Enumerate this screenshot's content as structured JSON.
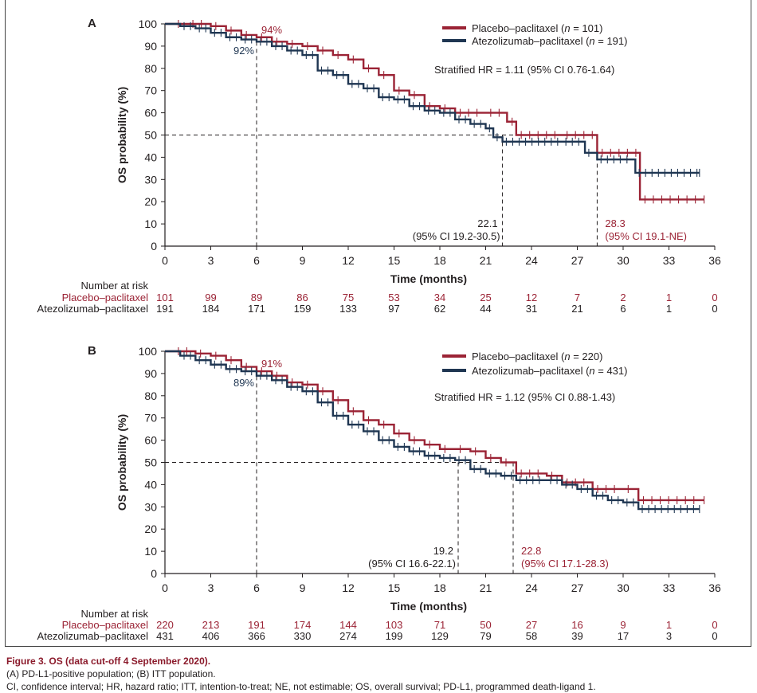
{
  "chart_data": [
    {
      "type": "line",
      "panel_label": "A",
      "title": "",
      "xlabel": "Time (months)",
      "ylabel": "OS probability (%)",
      "xlim": [
        0,
        36
      ],
      "ylim": [
        0,
        100
      ],
      "xticks": [
        "0",
        "3",
        "6",
        "9",
        "12",
        "15",
        "18",
        "21",
        "24",
        "27",
        "30",
        "33",
        "36"
      ],
      "yticks": [
        "0",
        "10",
        "20",
        "30",
        "40",
        "50",
        "60",
        "70",
        "80",
        "90",
        "100"
      ],
      "series": [
        {
          "name": "Placebo–paclitaxel",
          "n_text": "n = 101",
          "color": "#9b2335",
          "steps": [
            [
              0,
              100
            ],
            [
              1.5,
              100
            ],
            [
              3,
              99
            ],
            [
              4,
              97
            ],
            [
              5,
              95
            ],
            [
              6,
              94
            ],
            [
              7,
              92
            ],
            [
              8,
              91
            ],
            [
              9,
              90
            ],
            [
              10,
              88
            ],
            [
              11,
              86
            ],
            [
              12,
              84
            ],
            [
              13,
              80
            ],
            [
              14,
              77
            ],
            [
              15,
              70
            ],
            [
              16,
              68
            ],
            [
              17,
              63
            ],
            [
              18,
              62
            ],
            [
              19,
              60
            ],
            [
              21,
              60
            ],
            [
              22.4,
              56
            ],
            [
              23,
              50
            ],
            [
              26,
              50
            ],
            [
              28.3,
              42
            ],
            [
              31,
              42
            ],
            [
              31.1,
              21
            ],
            [
              35.3,
              21
            ]
          ]
        },
        {
          "name": "Atezolizumab–paclitaxel",
          "n_text": "n = 191",
          "color": "#1f3652",
          "steps": [
            [
              0,
              100
            ],
            [
              1,
              99
            ],
            [
              2,
              98
            ],
            [
              3,
              96
            ],
            [
              4,
              94
            ],
            [
              5,
              93
            ],
            [
              6,
              92
            ],
            [
              7,
              90
            ],
            [
              8,
              88
            ],
            [
              9,
              86
            ],
            [
              10,
              79
            ],
            [
              11,
              77
            ],
            [
              12,
              73
            ],
            [
              13,
              71
            ],
            [
              14,
              67
            ],
            [
              15,
              66
            ],
            [
              16,
              63
            ],
            [
              17,
              61
            ],
            [
              18,
              60
            ],
            [
              19,
              57
            ],
            [
              20,
              55
            ],
            [
              21,
              53
            ],
            [
              21.5,
              49
            ],
            [
              22.1,
              47
            ],
            [
              26,
              47
            ],
            [
              27.5,
              42
            ],
            [
              28.3,
              39
            ],
            [
              30,
              39
            ],
            [
              30.8,
              33
            ],
            [
              35,
              33
            ]
          ]
        }
      ],
      "annotations": {
        "placebo_6m": "94%",
        "atezo_6m": "92%",
        "hr_text": "Stratified HR = 1.11 (95% CI 0.76-1.64)",
        "atezo_median": "22.1",
        "atezo_median_ci": "(95% CI 19.2-30.5)",
        "placebo_median": "28.3",
        "placebo_median_ci": "(95% CI 19.1-NE)",
        "atezo_median_x": 22.1,
        "placebo_median_x": 28.3,
        "landmark_x": 6,
        "median_y": 50
      },
      "risk_table": {
        "header": "Number at risk",
        "rows": [
          {
            "label": "Placebo–paclitaxel",
            "color": "#9b2335",
            "values": [
              "101",
              "99",
              "89",
              "86",
              "75",
              "53",
              "34",
              "25",
              "12",
              "7",
              "2",
              "1",
              "0"
            ]
          },
          {
            "label": "Atezolizumab–paclitaxel",
            "color": "#231f20",
            "values": [
              "191",
              "184",
              "171",
              "159",
              "133",
              "97",
              "62",
              "44",
              "31",
              "21",
              "6",
              "1",
              "0"
            ]
          }
        ]
      }
    },
    {
      "type": "line",
      "panel_label": "B",
      "title": "",
      "xlabel": "Time (months)",
      "ylabel": "OS probability (%)",
      "xlim": [
        0,
        36
      ],
      "ylim": [
        0,
        100
      ],
      "xticks": [
        "0",
        "3",
        "6",
        "9",
        "12",
        "15",
        "18",
        "21",
        "24",
        "27",
        "30",
        "33",
        "36"
      ],
      "yticks": [
        "0",
        "10",
        "20",
        "30",
        "40",
        "50",
        "60",
        "70",
        "80",
        "90",
        "100"
      ],
      "series": [
        {
          "name": "Placebo–paclitaxel",
          "n_text": "n = 220",
          "color": "#9b2335",
          "steps": [
            [
              0,
              100
            ],
            [
              2,
              99
            ],
            [
              3,
              98
            ],
            [
              4,
              96
            ],
            [
              5,
              93
            ],
            [
              6,
              91
            ],
            [
              7,
              89
            ],
            [
              8,
              86
            ],
            [
              9,
              85
            ],
            [
              10,
              82
            ],
            [
              11,
              78
            ],
            [
              12,
              73
            ],
            [
              13,
              69
            ],
            [
              14,
              67
            ],
            [
              15,
              63
            ],
            [
              16,
              60
            ],
            [
              17,
              58
            ],
            [
              18,
              56
            ],
            [
              19,
              56
            ],
            [
              20,
              55
            ],
            [
              21,
              52
            ],
            [
              22,
              50
            ],
            [
              23,
              45
            ],
            [
              25,
              44
            ],
            [
              26,
              41
            ],
            [
              28,
              38
            ],
            [
              30,
              38
            ],
            [
              31,
              33
            ],
            [
              35.3,
              33
            ]
          ]
        },
        {
          "name": "Atezolizumab–paclitaxel",
          "n_text": "n = 431",
          "color": "#1f3652",
          "steps": [
            [
              0,
              100
            ],
            [
              1,
              98
            ],
            [
              2,
              96
            ],
            [
              3,
              94
            ],
            [
              4,
              92
            ],
            [
              5,
              91
            ],
            [
              6,
              89
            ],
            [
              7,
              87
            ],
            [
              8,
              84
            ],
            [
              9,
              82
            ],
            [
              10,
              77
            ],
            [
              11,
              71
            ],
            [
              12,
              67
            ],
            [
              13,
              64
            ],
            [
              14,
              60
            ],
            [
              15,
              57
            ],
            [
              16,
              55
            ],
            [
              17,
              53
            ],
            [
              18,
              52
            ],
            [
              19,
              51
            ],
            [
              20,
              47
            ],
            [
              21,
              45
            ],
            [
              22,
              44
            ],
            [
              23,
              42
            ],
            [
              25,
              42
            ],
            [
              26,
              40
            ],
            [
              27,
              38
            ],
            [
              28,
              35
            ],
            [
              29,
              33
            ],
            [
              30,
              32
            ],
            [
              31,
              29
            ],
            [
              35,
              29
            ]
          ]
        }
      ],
      "annotations": {
        "placebo_6m": "91%",
        "atezo_6m": "89%",
        "hr_text": "Stratified HR = 1.12 (95% CI 0.88-1.43)",
        "atezo_median": "19.2",
        "atezo_median_ci": "(95% CI 16.6-22.1)",
        "placebo_median": "22.8",
        "placebo_median_ci": "(95% CI 17.1-28.3)",
        "atezo_median_x": 19.2,
        "placebo_median_x": 22.8,
        "landmark_x": 6,
        "median_y": 50
      },
      "risk_table": {
        "header": "Number at risk",
        "rows": [
          {
            "label": "Placebo–paclitaxel",
            "color": "#9b2335",
            "values": [
              "220",
              "213",
              "191",
              "174",
              "144",
              "103",
              "71",
              "50",
              "27",
              "16",
              "9",
              "1",
              "0"
            ]
          },
          {
            "label": "Atezolizumab–paclitaxel",
            "color": "#231f20",
            "values": [
              "431",
              "406",
              "366",
              "330",
              "274",
              "199",
              "129",
              "79",
              "58",
              "39",
              "17",
              "3",
              "0"
            ]
          }
        ]
      }
    }
  ],
  "caption": {
    "figure_label": "Figure 3.",
    "figure_title": "OS (data cut-off 4 September 2020).",
    "line1": "(A) PD-L1-positive population; (B) ITT population.",
    "line2": "CI, confidence interval; HR, hazard ratio; ITT, intention-to-treat; NE, not estimable; OS, overall survival; PD-L1, programmed death-ligand 1."
  }
}
